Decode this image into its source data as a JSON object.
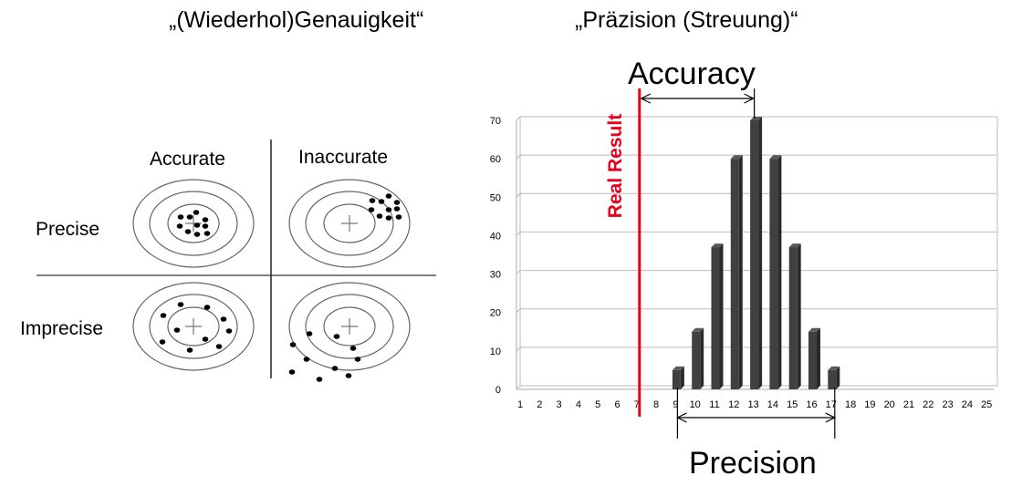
{
  "titles": {
    "left": "„(Wiederhol)Genauigkeit“",
    "right": "„Präzision (Streuung)“"
  },
  "targets_diagram": {
    "columns": [
      "Accurate",
      "Inaccurate"
    ],
    "rows": [
      "Precise",
      "Imprecise"
    ]
  },
  "annotations": {
    "real_result": "Real Result",
    "accuracy": "Accuracy",
    "precision": "Precision",
    "real_result_color": "#e8001c"
  },
  "chart_data": {
    "type": "bar",
    "style": "3d-column",
    "categories": [
      "1",
      "2",
      "3",
      "4",
      "5",
      "6",
      "7",
      "8",
      "9",
      "10",
      "11",
      "12",
      "13",
      "14",
      "15",
      "16",
      "17",
      "18",
      "19",
      "20",
      "21",
      "22",
      "23",
      "24",
      "25"
    ],
    "values": [
      0,
      0,
      0,
      0,
      0,
      0,
      0,
      0,
      5,
      15,
      37,
      60,
      70,
      60,
      37,
      15,
      5,
      0,
      0,
      0,
      0,
      0,
      0,
      0,
      0
    ],
    "yticks": [
      "0",
      "10",
      "20",
      "30",
      "40",
      "50",
      "60",
      "70"
    ],
    "ylim": [
      0,
      70
    ],
    "grid": true,
    "bar_color": "#404040",
    "real_result_x": 7,
    "accuracy_span": [
      7,
      13
    ],
    "precision_span": [
      9,
      17
    ]
  }
}
